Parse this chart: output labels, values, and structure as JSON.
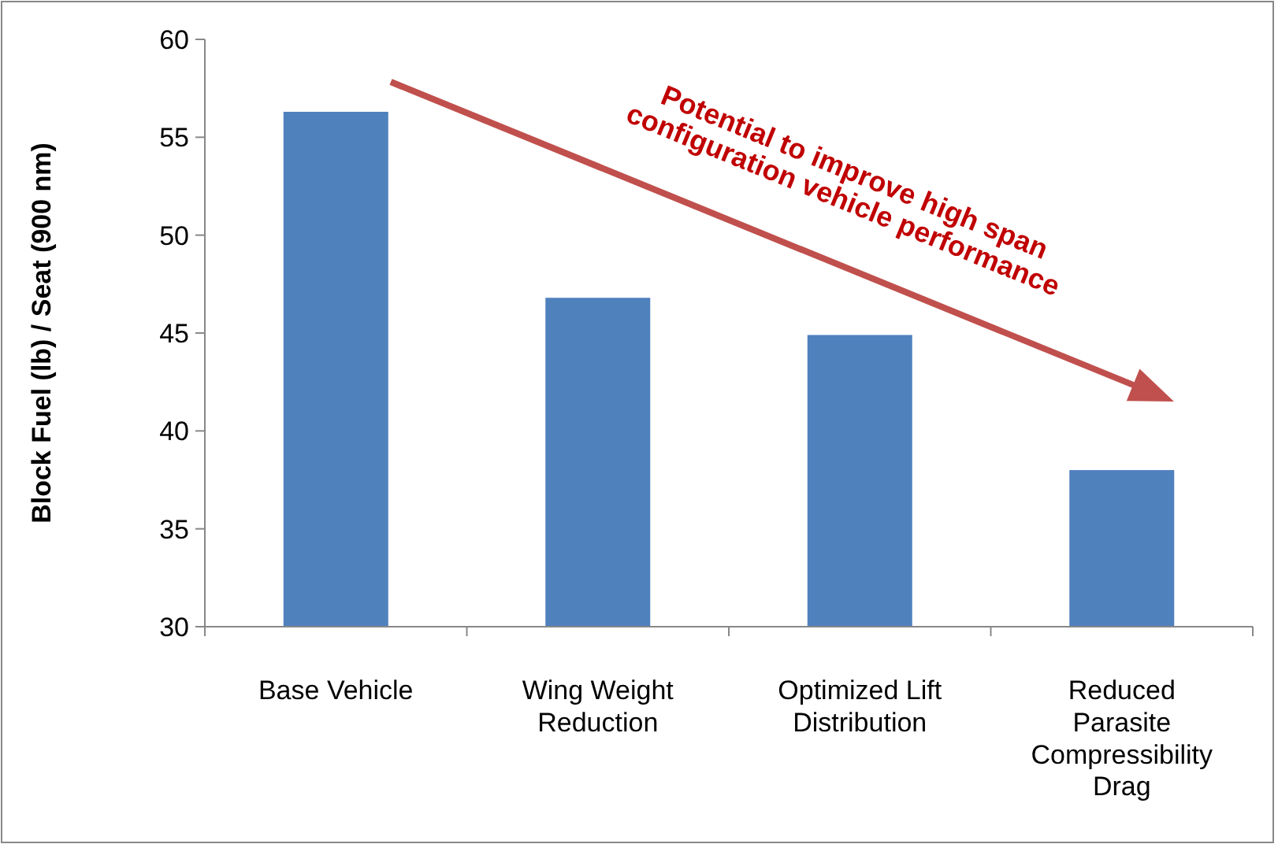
{
  "chart_data": {
    "type": "bar",
    "ylabel": "Block Fuel (lb) / Seat (900 nm)",
    "categories": [
      "Base Vehicle",
      "Wing Weight Reduction",
      "Optimized Lift Distribution",
      "Reduced Parasite Compressibility Drag"
    ],
    "values": [
      56.3,
      46.8,
      44.9,
      38.0
    ],
    "color": "#4f81bd",
    "ylim": [
      30,
      60
    ],
    "yticks": [
      30,
      35,
      40,
      45,
      50,
      55,
      60
    ],
    "grid": false,
    "annotations": [
      "Potential to improve high span configuration vehicle performance"
    ]
  }
}
